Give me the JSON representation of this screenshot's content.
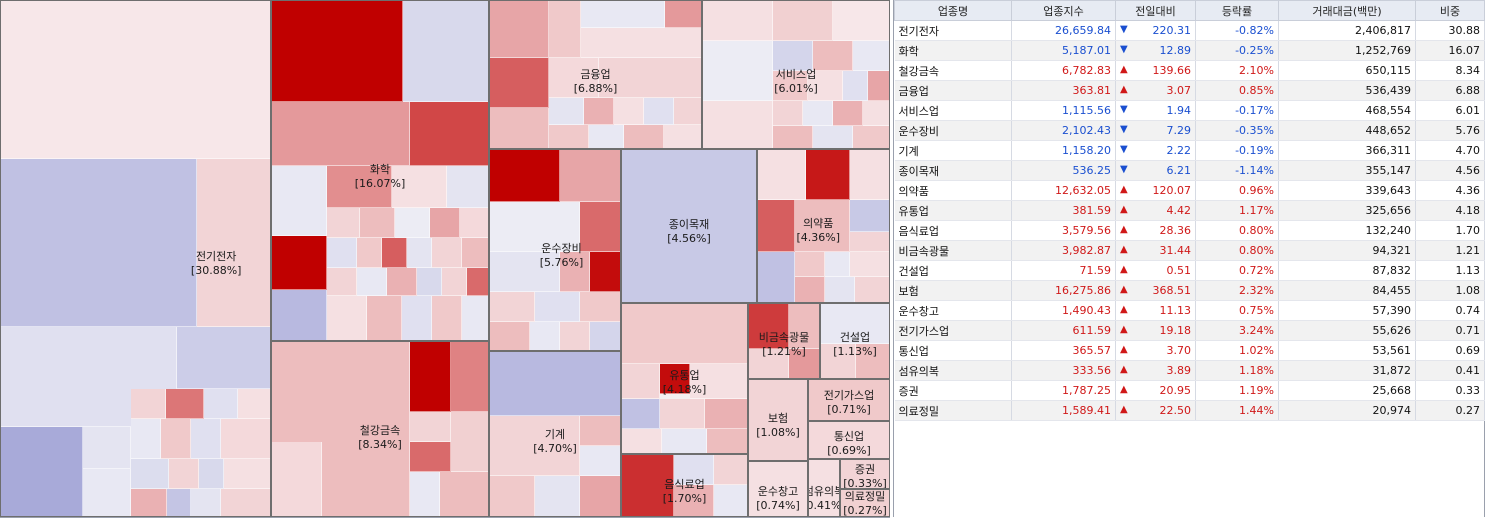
{
  "table": {
    "headers": [
      "업종명",
      "업종지수",
      "전일대비",
      "등락률",
      "거래대금(백만)",
      "비중"
    ],
    "rows": [
      {
        "name": "전기전자",
        "index": "26,659.84",
        "dir": "down",
        "change": "220.31",
        "rate": "-0.82%",
        "volume": "2,406,817",
        "weight": "30.88"
      },
      {
        "name": "화학",
        "index": "5,187.01",
        "dir": "down",
        "change": "12.89",
        "rate": "-0.25%",
        "volume": "1,252,769",
        "weight": "16.07"
      },
      {
        "name": "철강금속",
        "index": "6,782.83",
        "dir": "up",
        "change": "139.66",
        "rate": "2.10%",
        "volume": "650,115",
        "weight": "8.34"
      },
      {
        "name": "금융업",
        "index": "363.81",
        "dir": "up",
        "change": "3.07",
        "rate": "0.85%",
        "volume": "536,439",
        "weight": "6.88"
      },
      {
        "name": "서비스업",
        "index": "1,115.56",
        "dir": "down",
        "change": "1.94",
        "rate": "-0.17%",
        "volume": "468,554",
        "weight": "6.01"
      },
      {
        "name": "운수장비",
        "index": "2,102.43",
        "dir": "down",
        "change": "7.29",
        "rate": "-0.35%",
        "volume": "448,652",
        "weight": "5.76"
      },
      {
        "name": "기계",
        "index": "1,158.20",
        "dir": "down",
        "change": "2.22",
        "rate": "-0.19%",
        "volume": "366,311",
        "weight": "4.70"
      },
      {
        "name": "종이목재",
        "index": "536.25",
        "dir": "down",
        "change": "6.21",
        "rate": "-1.14%",
        "volume": "355,147",
        "weight": "4.56"
      },
      {
        "name": "의약품",
        "index": "12,632.05",
        "dir": "up",
        "change": "120.07",
        "rate": "0.96%",
        "volume": "339,643",
        "weight": "4.36"
      },
      {
        "name": "유통업",
        "index": "381.59",
        "dir": "up",
        "change": "4.42",
        "rate": "1.17%",
        "volume": "325,656",
        "weight": "4.18"
      },
      {
        "name": "음식료업",
        "index": "3,579.56",
        "dir": "up",
        "change": "28.36",
        "rate": "0.80%",
        "volume": "132,240",
        "weight": "1.70"
      },
      {
        "name": "비금속광물",
        "index": "3,982.87",
        "dir": "up",
        "change": "31.44",
        "rate": "0.80%",
        "volume": "94,321",
        "weight": "1.21"
      },
      {
        "name": "건설업",
        "index": "71.59",
        "dir": "up",
        "change": "0.51",
        "rate": "0.72%",
        "volume": "87,832",
        "weight": "1.13"
      },
      {
        "name": "보험",
        "index": "16,275.86",
        "dir": "up",
        "change": "368.51",
        "rate": "2.32%",
        "volume": "84,455",
        "weight": "1.08"
      },
      {
        "name": "운수창고",
        "index": "1,490.43",
        "dir": "up",
        "change": "11.13",
        "rate": "0.75%",
        "volume": "57,390",
        "weight": "0.74"
      },
      {
        "name": "전기가스업",
        "index": "611.59",
        "dir": "up",
        "change": "19.18",
        "rate": "3.24%",
        "volume": "55,626",
        "weight": "0.71"
      },
      {
        "name": "통신업",
        "index": "365.57",
        "dir": "up",
        "change": "3.70",
        "rate": "1.02%",
        "volume": "53,561",
        "weight": "0.69"
      },
      {
        "name": "섬유의복",
        "index": "333.56",
        "dir": "up",
        "change": "3.89",
        "rate": "1.18%",
        "volume": "31,872",
        "weight": "0.41"
      },
      {
        "name": "증권",
        "index": "1,787.25",
        "dir": "up",
        "change": "20.95",
        "rate": "1.19%",
        "volume": "25,668",
        "weight": "0.33"
      },
      {
        "name": "의료정밀",
        "index": "1,589.41",
        "dir": "up",
        "change": "22.50",
        "rate": "1.44%",
        "volume": "20,974",
        "weight": "0.27"
      }
    ]
  },
  "treemap": {
    "sectors": [
      {
        "id": "electronics",
        "name": "전기전자",
        "weight": "[30.88%]",
        "rate": -0.82
      },
      {
        "id": "chemical",
        "name": "화학",
        "weight": "[16.07%]",
        "rate": -0.25
      },
      {
        "id": "steel",
        "name": "철강금속",
        "weight": "[8.34%]",
        "rate": 2.1
      },
      {
        "id": "finance",
        "name": "금융업",
        "weight": "[6.88%]",
        "rate": 0.85
      },
      {
        "id": "service",
        "name": "서비스업",
        "weight": "[6.01%]",
        "rate": -0.17
      },
      {
        "id": "transport-eq",
        "name": "운수장비",
        "weight": "[5.76%]",
        "rate": -0.35
      },
      {
        "id": "machinery",
        "name": "기계",
        "weight": "[4.70%]",
        "rate": -0.19
      },
      {
        "id": "paper",
        "name": "종이목재",
        "weight": "[4.56%]",
        "rate": -1.14
      },
      {
        "id": "pharma",
        "name": "의약품",
        "weight": "[4.36%]",
        "rate": 0.96
      },
      {
        "id": "distribution",
        "name": "유통업",
        "weight": "[4.18%]",
        "rate": 1.17
      },
      {
        "id": "food",
        "name": "음식료업",
        "weight": "[1.70%]",
        "rate": 0.8
      },
      {
        "id": "nonmetal",
        "name": "비금속광물",
        "weight": "[1.21%]",
        "rate": 0.8
      },
      {
        "id": "construction",
        "name": "건설업",
        "weight": "[1.13%]",
        "rate": 0.72
      },
      {
        "id": "insurance",
        "name": "보험",
        "weight": "[1.08%]",
        "rate": 2.32
      },
      {
        "id": "warehouse",
        "name": "운수창고",
        "weight": "[0.74%]",
        "rate": 0.75
      },
      {
        "id": "utility",
        "name": "전기가스업",
        "weight": "[0.71%]",
        "rate": 3.24
      },
      {
        "id": "telecom",
        "name": "통신업",
        "weight": "[0.69%]",
        "rate": 1.02
      },
      {
        "id": "textile",
        "name": "섬유의복",
        "weight": "0.41%",
        "rate": 1.18
      },
      {
        "id": "securities",
        "name": "증권",
        "weight": "[0.33%]",
        "rate": 1.19
      },
      {
        "id": "medical",
        "name": "의료정밀",
        "weight": "[0.27%]",
        "rate": 1.44
      }
    ]
  },
  "colors": {
    "up_text": "#d01818",
    "down_text": "#1a4fd0",
    "up_strong": "#c00000",
    "down_strong": "#9a9ad4",
    "header_bg": "#e7ebf3"
  },
  "icons": {
    "up": "triangle-up-icon",
    "down": "triangle-down-icon"
  }
}
